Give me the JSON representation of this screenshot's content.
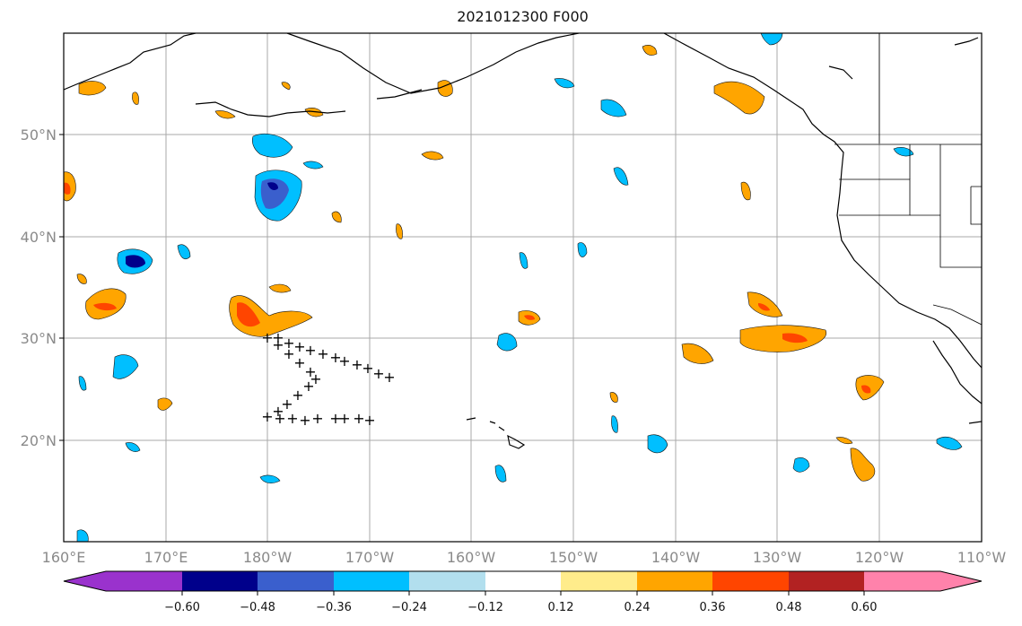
{
  "title": "2021012300 F000",
  "map": {
    "lat_ticks": [
      "20°N",
      "30°N",
      "40°N",
      "50°N"
    ],
    "lon_ticks": [
      "160°E",
      "170°E",
      "180°W",
      "170°W",
      "160°W",
      "150°W",
      "140°W",
      "130°W",
      "120°W",
      "110°W"
    ],
    "grid": true,
    "track_marker": "+"
  },
  "colorbar": {
    "labels": [
      "−0.60",
      "−0.48",
      "−0.36",
      "−0.24",
      "−0.12",
      "0.12",
      "0.24",
      "0.36",
      "0.48",
      "0.60"
    ],
    "colors": [
      "#9a32cd",
      "#00008b",
      "#3a5fcd",
      "#00bfff",
      "#b2dfee",
      "#ffffff",
      "#ffec8b",
      "#ffa500",
      "#ff4500",
      "#b22222",
      "#ff82ab"
    ],
    "extend": "both"
  }
}
